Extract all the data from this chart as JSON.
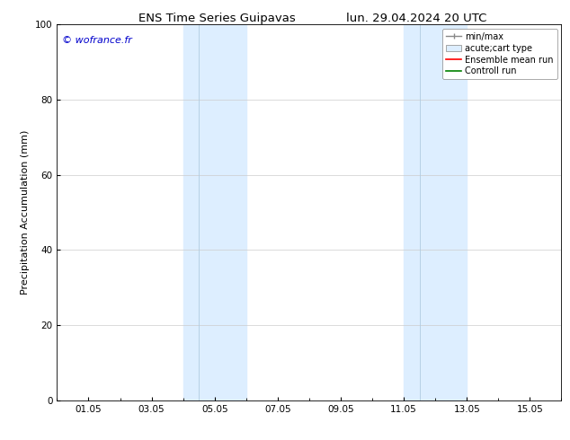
{
  "title_left": "ENS Time Series Guipavas",
  "title_right": "lun. 29.04.2024 20 UTC",
  "ylabel": "Precipitation Accumulation (mm)",
  "watermark": "© wofrance.fr",
  "watermark_color": "#0000cc",
  "ylim": [
    0,
    100
  ],
  "yticks": [
    0,
    20,
    40,
    60,
    80,
    100
  ],
  "xtick_labels": [
    "01.05",
    "03.05",
    "05.05",
    "07.05",
    "09.05",
    "11.05",
    "13.05",
    "15.05"
  ],
  "xtick_positions": [
    1.0,
    3.0,
    5.0,
    7.0,
    9.0,
    11.0,
    13.0,
    15.0
  ],
  "xlim": [
    0,
    16
  ],
  "shaded_band1_light": {
    "xmin": 4.0,
    "xmax": 4.5
  },
  "shaded_band1_main": {
    "xmin": 4.5,
    "xmax": 6.0
  },
  "shaded_band2_light": {
    "xmin": 11.0,
    "xmax": 11.5
  },
  "shaded_band2_main": {
    "xmin": 11.5,
    "xmax": 13.0
  },
  "shade_color_light": "#ddeeff",
  "shade_color_main": "#c8dff5",
  "background_color": "#ffffff",
  "grid_color": "#cccccc",
  "title_fontsize": 9.5,
  "axis_label_fontsize": 8,
  "tick_fontsize": 7.5,
  "legend_fontsize": 7.0
}
